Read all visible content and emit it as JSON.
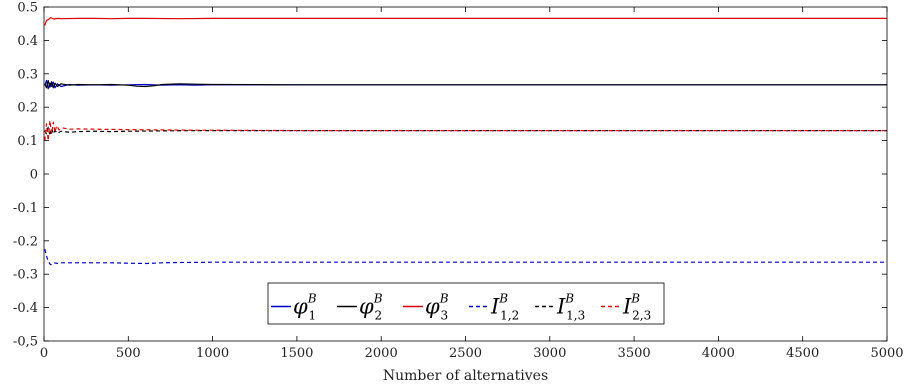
{
  "chart_data": {
    "type": "line",
    "title": "",
    "xlabel": "Number of alternatives",
    "ylabel": "",
    "xlim": [
      0,
      5000
    ],
    "ylim": [
      -0.5,
      0.5
    ],
    "xticks": [
      0,
      500,
      1000,
      1500,
      2000,
      2500,
      3000,
      3500,
      4000,
      4500,
      5000
    ],
    "yticks": [
      0.5,
      0.4,
      0.3,
      0.2,
      0.1,
      0,
      -0.1,
      -0.2,
      -0.3,
      -0.4,
      -0.5
    ],
    "ytick_labels": [
      "0.5",
      "0.4",
      "0.3",
      "0.2",
      "0.1",
      "0",
      "-0.1",
      "-0.2",
      "-0.3",
      "-0.4",
      "-0,5"
    ],
    "grid": false,
    "legend_position": "bottom-center",
    "legend_orientation": "horizontal",
    "series": [
      {
        "label_base": "φ",
        "label_sub": "1",
        "label_sup": "B",
        "color": "#0000cc",
        "dash": "solid",
        "x": [
          5,
          15,
          25,
          35,
          45,
          55,
          65,
          80,
          100,
          150,
          200,
          300,
          400,
          500,
          600,
          700,
          800,
          900,
          1000,
          1500,
          2000,
          3000,
          4000,
          5000
        ],
        "y": [
          0.265,
          0.28,
          0.255,
          0.272,
          0.262,
          0.275,
          0.258,
          0.27,
          0.262,
          0.268,
          0.266,
          0.267,
          0.266,
          0.267,
          0.268,
          0.266,
          0.267,
          0.266,
          0.267,
          0.267,
          0.267,
          0.267,
          0.267,
          0.267
        ]
      },
      {
        "label_base": "φ",
        "label_sub": "2",
        "label_sup": "B",
        "color": "#000000",
        "dash": "solid",
        "x": [
          5,
          15,
          25,
          35,
          45,
          55,
          65,
          80,
          100,
          150,
          200,
          300,
          400,
          500,
          550,
          600,
          650,
          700,
          800,
          900,
          1000,
          1500,
          2000,
          3000,
          4000,
          5000
        ],
        "y": [
          0.27,
          0.258,
          0.28,
          0.26,
          0.276,
          0.258,
          0.272,
          0.262,
          0.27,
          0.266,
          0.268,
          0.267,
          0.268,
          0.266,
          0.263,
          0.262,
          0.264,
          0.268,
          0.27,
          0.269,
          0.268,
          0.267,
          0.267,
          0.267,
          0.267,
          0.267
        ]
      },
      {
        "label_base": "φ",
        "label_sub": "3",
        "label_sup": "B",
        "color": "#dd0000",
        "dash": "solid",
        "x": [
          5,
          15,
          25,
          40,
          60,
          80,
          100,
          200,
          300,
          400,
          500,
          600,
          800,
          1000,
          2000,
          3000,
          4000,
          5000
        ],
        "y": [
          0.445,
          0.46,
          0.462,
          0.468,
          0.464,
          0.466,
          0.465,
          0.466,
          0.466,
          0.465,
          0.466,
          0.466,
          0.465,
          0.466,
          0.466,
          0.466,
          0.466,
          0.466
        ]
      },
      {
        "label_base": "I",
        "label_sub": "1,2",
        "label_sup": "B",
        "color": "#0000cc",
        "dash": "dashed",
        "x": [
          5,
          15,
          25,
          40,
          60,
          80,
          100,
          200,
          300,
          400,
          500,
          600,
          700,
          800,
          1000,
          1500,
          2000,
          3000,
          4000,
          5000
        ],
        "y": [
          -0.225,
          -0.245,
          -0.262,
          -0.272,
          -0.266,
          -0.268,
          -0.266,
          -0.266,
          -0.266,
          -0.266,
          -0.267,
          -0.268,
          -0.266,
          -0.265,
          -0.264,
          -0.264,
          -0.264,
          -0.264,
          -0.264,
          -0.264
        ]
      },
      {
        "label_base": "I",
        "label_sub": "1,3",
        "label_sup": "B",
        "color": "#000000",
        "dash": "dashed",
        "x": [
          5,
          15,
          25,
          35,
          45,
          55,
          65,
          80,
          100,
          150,
          200,
          300,
          400,
          500,
          700,
          900,
          1000,
          1500,
          2000,
          3000,
          4000,
          5000
        ],
        "y": [
          0.13,
          0.12,
          0.14,
          0.115,
          0.138,
          0.12,
          0.13,
          0.122,
          0.128,
          0.125,
          0.127,
          0.128,
          0.127,
          0.128,
          0.129,
          0.13,
          0.13,
          0.13,
          0.13,
          0.13,
          0.13,
          0.13
        ]
      },
      {
        "label_base": "I",
        "label_sub": "2,3",
        "label_sup": "B",
        "color": "#dd0000",
        "dash": "dashed",
        "x": [
          5,
          15,
          25,
          35,
          45,
          55,
          65,
          75,
          90,
          110,
          150,
          200,
          300,
          500,
          700,
          900,
          1000,
          1500,
          2000,
          3000,
          4000,
          5000
        ],
        "y": [
          0.1,
          0.15,
          0.1,
          0.16,
          0.12,
          0.155,
          0.125,
          0.145,
          0.132,
          0.138,
          0.134,
          0.135,
          0.134,
          0.133,
          0.132,
          0.131,
          0.131,
          0.13,
          0.13,
          0.13,
          0.13,
          0.13
        ]
      }
    ]
  }
}
